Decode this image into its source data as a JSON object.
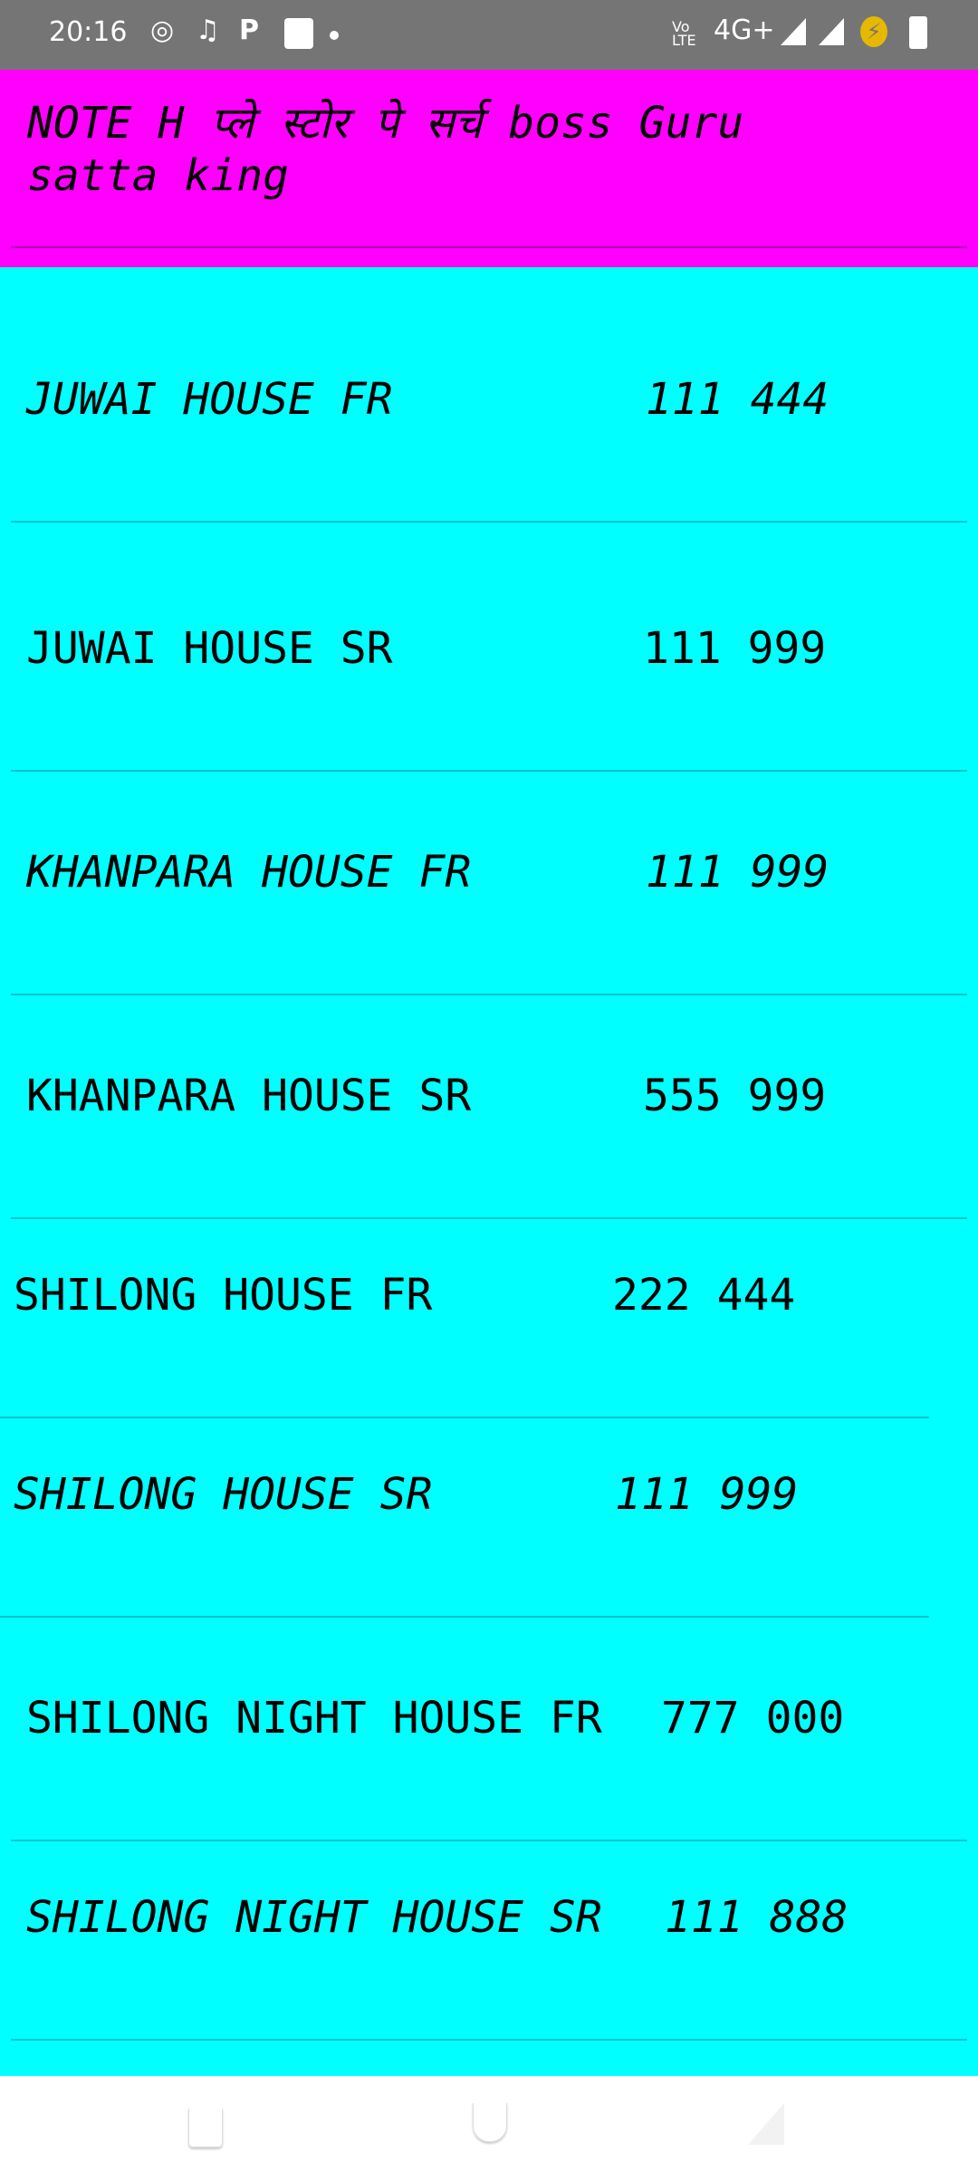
{
  "status_bar": {
    "time": "20:16",
    "network": "4G+",
    "left_icons": [
      "whatsapp-icon",
      "music-icon",
      "paytm-icon",
      "shopping-bag-icon",
      "dot-icon"
    ],
    "right_icons": [
      "volte-icon",
      "signal-icon",
      "signal-icon",
      "battery-saver-icon",
      "battery-icon"
    ]
  },
  "header": {
    "text": "NOTE H  प्ले स्टोर पे सर्च boss Guru satta king",
    "color": "#ff00ff"
  },
  "list": {
    "color": "#00ffff",
    "rows": [
      {
        "label": "JUWAI HOUSE FR",
        "value": "111 444"
      },
      {
        "label": "JUWAI HOUSE SR",
        "value": "111 999"
      },
      {
        "label": "KHANPARA HOUSE FR",
        "value": "111 999"
      },
      {
        "label": "KHANPARA HOUSE SR",
        "value": "555 999"
      },
      {
        "label": "SHILONG HOUSE FR",
        "value": "222 444"
      },
      {
        "label": "SHILONG HOUSE SR",
        "value": "111 999"
      },
      {
        "label": "SHILONG NIGHT HOUSE FR",
        "value": "777 000"
      },
      {
        "label": "SHILONG NIGHT HOUSE SR",
        "value": "111 888"
      }
    ]
  }
}
